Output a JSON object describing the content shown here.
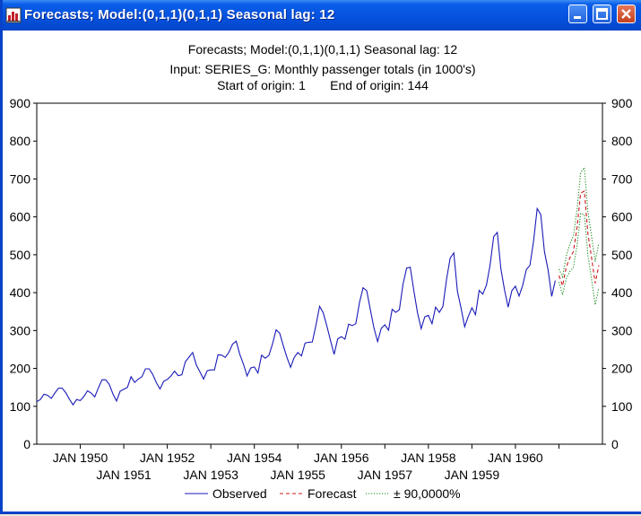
{
  "window": {
    "title": "Forecasts; Model:(0,1,1)(0,1,1) Seasonal lag: 12",
    "buttons": [
      "minimize",
      "maximize",
      "close"
    ]
  },
  "chart_data": {
    "type": "line",
    "title": "Forecasts; Model:(0,1,1)(0,1,1) Seasonal lag: 12",
    "subtitle_lines": [
      "Input: SERIES_G: Monthly passenger totals (in 1000's)",
      "Start of origin: 1       End of origin: 144"
    ],
    "ylim": [
      0,
      900
    ],
    "yticks": [
      0,
      100,
      200,
      300,
      400,
      500,
      600,
      700,
      800,
      900
    ],
    "x_start": "JAN 1949",
    "x_end": "DEC 1961",
    "xtick_labels_row1": [
      "JAN 1950",
      "JAN 1952",
      "JAN 1954",
      "JAN 1956",
      "JAN 1958",
      "JAN 1960"
    ],
    "xtick_labels_row2": [
      "JAN 1951",
      "JAN 1953",
      "JAN 1955",
      "JAN 1957",
      "JAN 1959"
    ],
    "grid": true,
    "legend_position": "bottom",
    "series": [
      {
        "name": "Observed",
        "color": "#1a1ab8",
        "style": "solid",
        "start": "JAN 1949",
        "values": [
          112,
          118,
          132,
          129,
          121,
          135,
          148,
          148,
          136,
          119,
          104,
          118,
          115,
          126,
          141,
          135,
          125,
          149,
          170,
          170,
          158,
          133,
          114,
          140,
          145,
          150,
          178,
          163,
          172,
          178,
          199,
          199,
          184,
          162,
          146,
          166,
          171,
          180,
          193,
          181,
          183,
          218,
          230,
          242,
          209,
          191,
          172,
          194,
          196,
          196,
          236,
          235,
          229,
          243,
          264,
          272,
          237,
          211,
          180,
          201,
          204,
          188,
          235,
          227,
          234,
          264,
          302,
          293,
          259,
          229,
          203,
          229,
          242,
          233,
          267,
          269,
          270,
          315,
          364,
          347,
          312,
          274,
          237,
          278,
          284,
          277,
          317,
          313,
          318,
          374,
          413,
          405,
          355,
          306,
          271,
          306,
          315,
          301,
          356,
          348,
          355,
          422,
          465,
          467,
          404,
          347,
          305,
          336,
          340,
          318,
          362,
          348,
          363,
          435,
          491,
          505,
          404,
          359,
          310,
          337,
          360,
          342,
          406,
          396,
          420,
          472,
          548,
          559,
          463,
          407,
          362,
          405,
          417,
          391,
          419,
          461,
          472,
          535,
          622,
          606,
          508,
          461,
          390,
          432
        ]
      },
      {
        "name": "Forecast",
        "color": "#cc1a1a",
        "style": "dashed",
        "start": "JAN 1961",
        "values": [
          445,
          418,
          467,
          492,
          508,
          573,
          663,
          668,
          556,
          492,
          425,
          472
        ]
      },
      {
        "name": "± 90,0000%",
        "color": "#1a8a1a",
        "style": "dotted",
        "start": "JAN 1961",
        "upper": [
          462,
          442,
          497,
          528,
          550,
          621,
          717,
          730,
          614,
          549,
          482,
          531
        ],
        "lower": [
          428,
          394,
          437,
          456,
          466,
          525,
          609,
          606,
          498,
          435,
          368,
          413
        ]
      }
    ]
  }
}
